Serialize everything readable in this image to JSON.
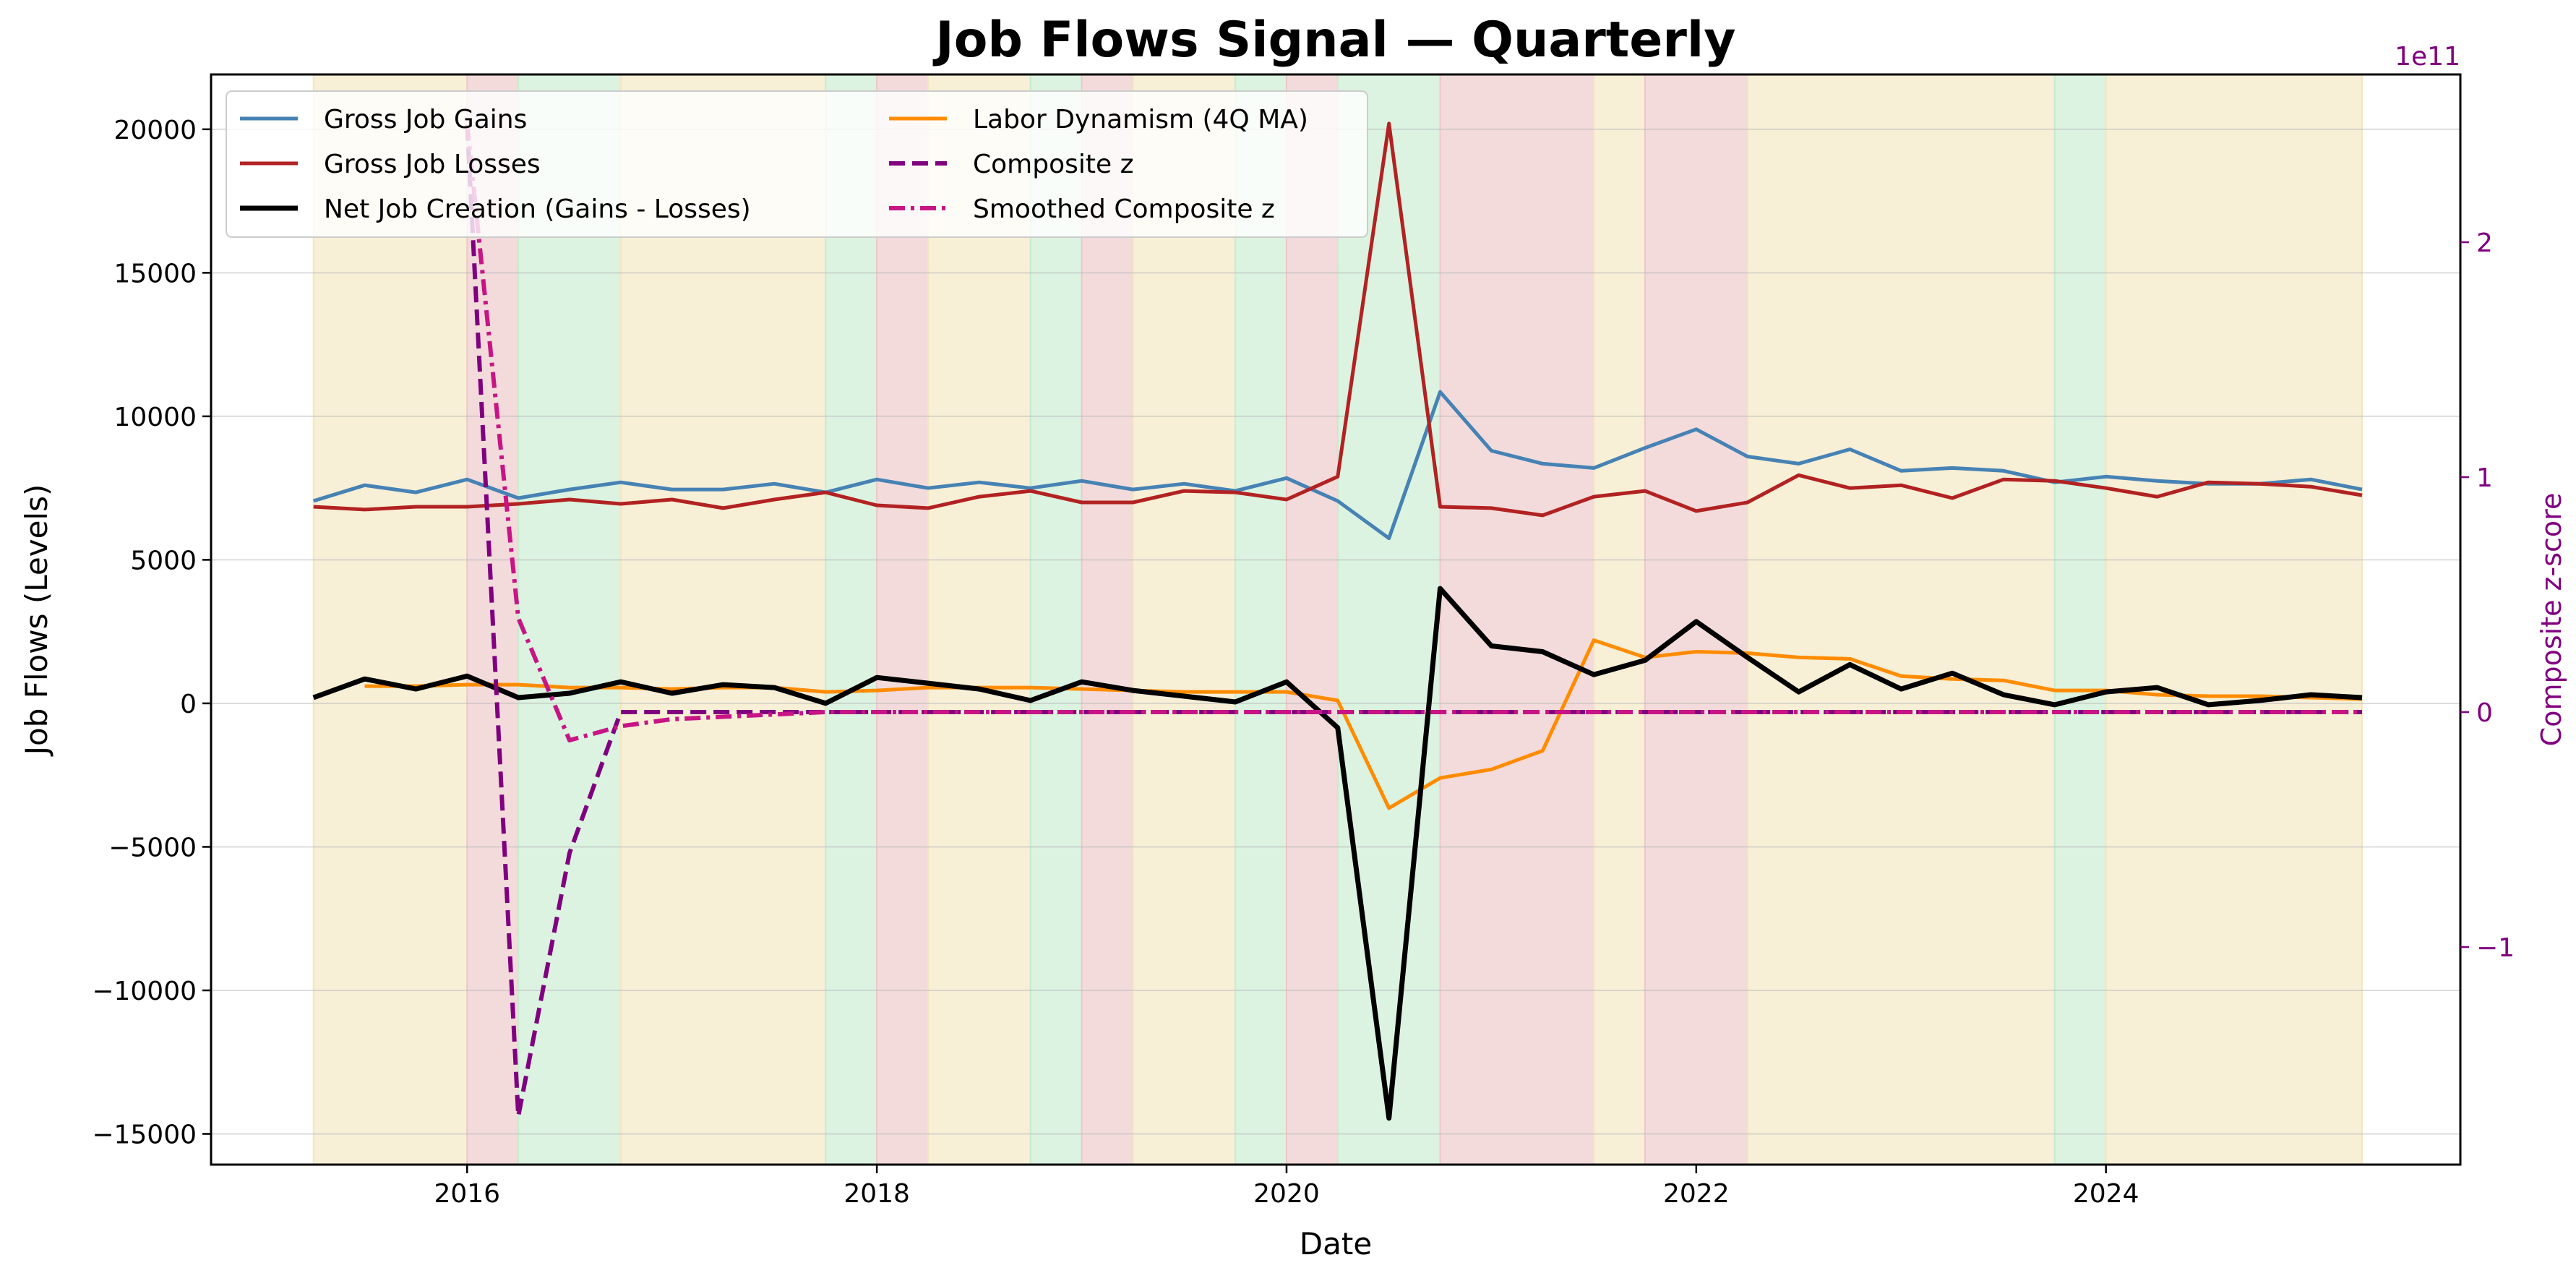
{
  "chart_data": {
    "type": "line",
    "title": "Job Flows Signal — Quarterly",
    "xlabel": "Date",
    "ylabel": "Job Flows (Levels)",
    "y2label": "Composite z-score",
    "y2_offset_text": "1e11",
    "xlim": [
      2014.75,
      2025.73
    ],
    "ylim": [
      -16070,
      21910
    ],
    "y2lim": [
      -1.926,
      2.714
    ],
    "x_ticks": [
      2016,
      2018,
      2020,
      2022,
      2024
    ],
    "x_tick_labels": [
      "2016",
      "2018",
      "2020",
      "2022",
      "2024"
    ],
    "y_ticks": [
      -15000,
      -10000,
      -5000,
      0,
      5000,
      10000,
      15000,
      20000
    ],
    "y_tick_labels": [
      "−15000",
      "−10000",
      "−5000",
      "0",
      "5000",
      "10000",
      "15000",
      "20000"
    ],
    "y2_ticks": [
      -1,
      0,
      1,
      2
    ],
    "y2_tick_labels": [
      "−1",
      "0",
      "1",
      "2"
    ],
    "grid": true,
    "legend_position": "top-left",
    "x_start": 2015.25,
    "x_step": 0.25,
    "series": [
      {
        "name": "Gross Job Gains",
        "color": "#4682b4",
        "axis": "left",
        "style": "solid",
        "start": 2015.25,
        "values": [
          7050,
          7600,
          7350,
          7800,
          7150,
          7450,
          7700,
          7450,
          7450,
          7650,
          7350,
          7800,
          7500,
          7700,
          7500,
          7750,
          7450,
          7650,
          7400,
          7850,
          7050,
          5750,
          10850,
          8800,
          8350,
          8200,
          8900,
          9550,
          8600,
          8350,
          8850,
          8100,
          8200,
          8100,
          7700,
          7900,
          7750,
          7650,
          7650,
          7800,
          7450
        ]
      },
      {
        "name": "Gross Job Losses",
        "color": "#b22222",
        "axis": "left",
        "style": "solid",
        "start": 2015.25,
        "values": [
          6850,
          6750,
          6850,
          6850,
          6950,
          7100,
          6950,
          7100,
          6800,
          7100,
          7350,
          6900,
          6800,
          7200,
          7400,
          7000,
          7000,
          7400,
          7350,
          7100,
          7900,
          20200,
          6850,
          6800,
          6550,
          7200,
          7400,
          6700,
          7000,
          7950,
          7500,
          7600,
          7150,
          7800,
          7750,
          7500,
          7200,
          7700,
          7650,
          7550,
          7250
        ]
      },
      {
        "name": "Net Job Creation (Gains - Losses)",
        "color": "#000000",
        "axis": "left",
        "style": "thick",
        "start": 2015.25,
        "values": [
          200,
          850,
          500,
          950,
          200,
          350,
          750,
          350,
          650,
          550,
          0,
          900,
          700,
          500,
          100,
          750,
          450,
          250,
          50,
          750,
          -850,
          -14450,
          4000,
          2000,
          1800,
          1000,
          1500,
          2850,
          1600,
          400,
          1350,
          500,
          1050,
          300,
          -50,
          400,
          550,
          -50,
          100,
          300,
          200
        ]
      },
      {
        "name": "Labor Dynamism (4Q MA)",
        "color": "#ff8c00",
        "axis": "left",
        "style": "solid",
        "start": 2015.5,
        "values": [
          600,
          600,
          650,
          650,
          550,
          550,
          500,
          550,
          550,
          400,
          450,
          550,
          550,
          550,
          500,
          450,
          400,
          400,
          400,
          100,
          -3650,
          -2600,
          -2300,
          -1650,
          2200,
          1600,
          1800,
          1750,
          1600,
          1550,
          950,
          850,
          800,
          450,
          450,
          300,
          250,
          250,
          200,
          150
        ]
      },
      {
        "name": "Composite z",
        "color": "#800080",
        "axis": "right",
        "style": "dashed",
        "start": 2016.0,
        "values": [
          2.5,
          -1.72,
          -0.6,
          0,
          0,
          0,
          0,
          0,
          0,
          0,
          0,
          0,
          0,
          0,
          0,
          0,
          0,
          0,
          0,
          0,
          0,
          0,
          0,
          0,
          0,
          0,
          0,
          0,
          0,
          0,
          0,
          0,
          0,
          0,
          0,
          0,
          0,
          0
        ]
      },
      {
        "name": "Smoothed Composite z",
        "color": "#c71585",
        "axis": "right",
        "style": "dashdot",
        "start": 2016.0,
        "values": [
          2.5,
          0.4,
          -0.12,
          -0.06,
          -0.03,
          -0.02,
          -0.01,
          0,
          0,
          0,
          0,
          0,
          0,
          0,
          0,
          0,
          0,
          0,
          0,
          0,
          0,
          0,
          0,
          0,
          0,
          0,
          0,
          0,
          0,
          0,
          0,
          0,
          0,
          0,
          0,
          0,
          0,
          0
        ]
      }
    ],
    "regime_bands": [
      {
        "from": 2015.25,
        "to": 2016.0,
        "color": "#f3e6c0"
      },
      {
        "from": 2016.0,
        "to": 2016.25,
        "color": "#edc8c8"
      },
      {
        "from": 2016.25,
        "to": 2016.75,
        "color": "#c8ecd0"
      },
      {
        "from": 2016.75,
        "to": 2017.75,
        "color": "#f3e6c0"
      },
      {
        "from": 2017.75,
        "to": 2018.0,
        "color": "#c8ecd0"
      },
      {
        "from": 2018.0,
        "to": 2018.25,
        "color": "#edc8c8"
      },
      {
        "from": 2018.25,
        "to": 2018.75,
        "color": "#f3e6c0"
      },
      {
        "from": 2018.75,
        "to": 2019.0,
        "color": "#c8ecd0"
      },
      {
        "from": 2019.0,
        "to": 2019.25,
        "color": "#edc8c8"
      },
      {
        "from": 2019.25,
        "to": 2019.75,
        "color": "#f3e6c0"
      },
      {
        "from": 2019.75,
        "to": 2020.0,
        "color": "#c8ecd0"
      },
      {
        "from": 2020.0,
        "to": 2020.25,
        "color": "#edc8c8"
      },
      {
        "from": 2020.25,
        "to": 2020.75,
        "color": "#c8ecd0"
      },
      {
        "from": 2020.75,
        "to": 2021.5,
        "color": "#edc8c8"
      },
      {
        "from": 2021.5,
        "to": 2021.75,
        "color": "#f3e6c0"
      },
      {
        "from": 2021.75,
        "to": 2022.25,
        "color": "#edc8c8"
      },
      {
        "from": 2022.25,
        "to": 2023.75,
        "color": "#f3e6c0"
      },
      {
        "from": 2023.75,
        "to": 2024.0,
        "color": "#c8ecd0"
      },
      {
        "from": 2024.0,
        "to": 2025.25,
        "color": "#f3e6c0"
      }
    ],
    "right_axis_color": "#800080"
  }
}
